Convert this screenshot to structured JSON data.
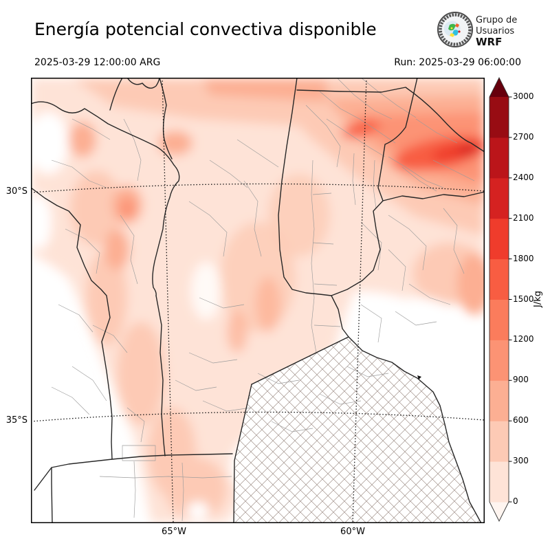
{
  "header": {
    "title": "Energía potencial convectiva disponible",
    "valid_time": "2025-03-29 12:00:00 ARG",
    "run": "Run: 2025-03-29 06:00:00",
    "logo": {
      "line1": "Grupo de",
      "line2": "Usuarios",
      "line3": "WRF"
    }
  },
  "map": {
    "lat_labels": [
      "30°S",
      "35°S"
    ],
    "lon_labels": [
      "65°W",
      "60°W"
    ]
  },
  "colorbar": {
    "unit": "J/kg",
    "ticks": [
      0,
      300,
      600,
      900,
      1200,
      1500,
      1800,
      2100,
      2400,
      2700,
      3000
    ],
    "colors": [
      "#fff5f0",
      "#fee3d7",
      "#fdcab5",
      "#fcaf93",
      "#fc9374",
      "#fb7c5c",
      "#f85d42",
      "#ef3c2c",
      "#d52221",
      "#bb151a",
      "#980c13",
      "#67000d"
    ],
    "extend": "both"
  },
  "field": {
    "variable": "CAPE",
    "shading_palette": "Reds",
    "max_band_location": "northeast",
    "max_band_level_jkg": 1800
  }
}
